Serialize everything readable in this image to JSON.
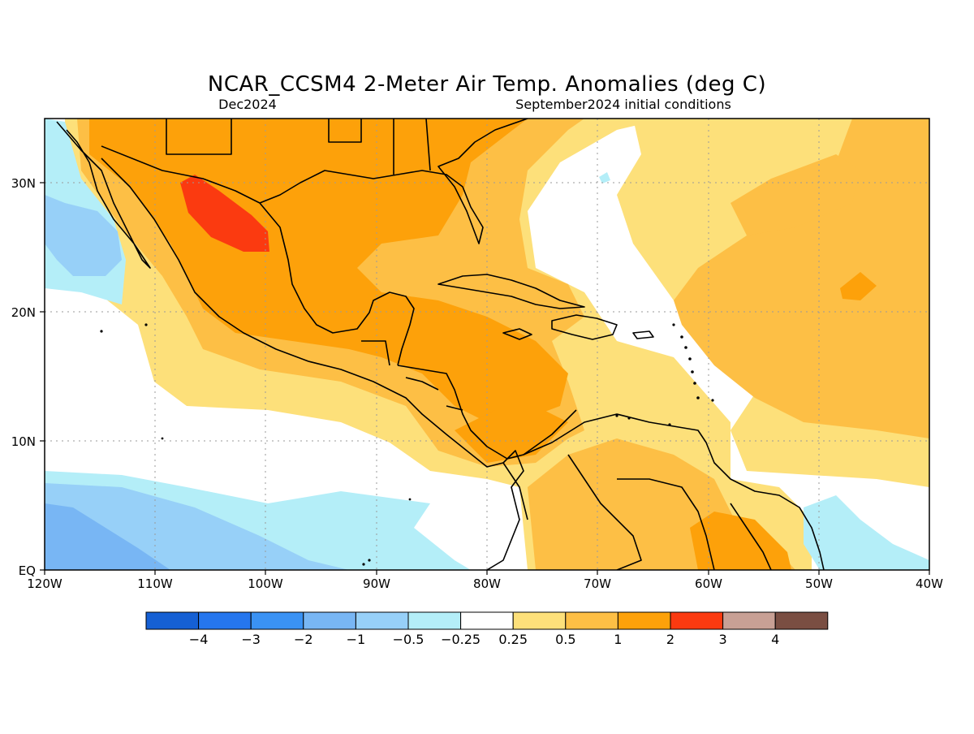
{
  "header": {
    "title": "NCAR_CCSM4 2-Meter Air Temp. Anomalies (deg C)",
    "valid_month": "Dec2024",
    "init_conditions": "September2024 initial conditions"
  },
  "axes": {
    "lon_ticks": [
      "120W",
      "110W",
      "100W",
      "90W",
      "80W",
      "70W",
      "60W",
      "50W",
      "40W"
    ],
    "lat_ticks": [
      "EQ",
      "10N",
      "20N",
      "30N"
    ],
    "lon_range": [
      -120,
      -40
    ],
    "lat_range": [
      0,
      35
    ],
    "grid": "dotted"
  },
  "legend": {
    "bins": [
      {
        "color": "#1560d4"
      },
      {
        "color": "#2576ee"
      },
      {
        "color": "#3a92f4"
      },
      {
        "color": "#78b6f4"
      },
      {
        "color": "#97d0f8"
      },
      {
        "color": "#b4eef8"
      },
      {
        "color": "#ffffff"
      },
      {
        "color": "#fde07a"
      },
      {
        "color": "#fdbf45"
      },
      {
        "color": "#fda10a"
      },
      {
        "color": "#fb3a10"
      },
      {
        "color": "#c8a095"
      },
      {
        "color": "#7a4e42"
      }
    ],
    "labels": [
      "-4",
      "-3",
      "-2",
      "-1",
      "-0.5",
      "-0.25",
      "0.25",
      "0.5",
      "1",
      "2",
      "3",
      "4"
    ]
  },
  "map": {
    "region": "Caribbean / Gulf of Mexico / Central America",
    "colors": {
      "light_orange": "#fdbf45",
      "orange": "#fda10a",
      "red": "#fb3a10",
      "yellow": "#fde07a",
      "white": "#ffffff",
      "light_blue": "#b4eef8",
      "mid_blue": "#97d0f8",
      "blue": "#78b6f4"
    }
  }
}
